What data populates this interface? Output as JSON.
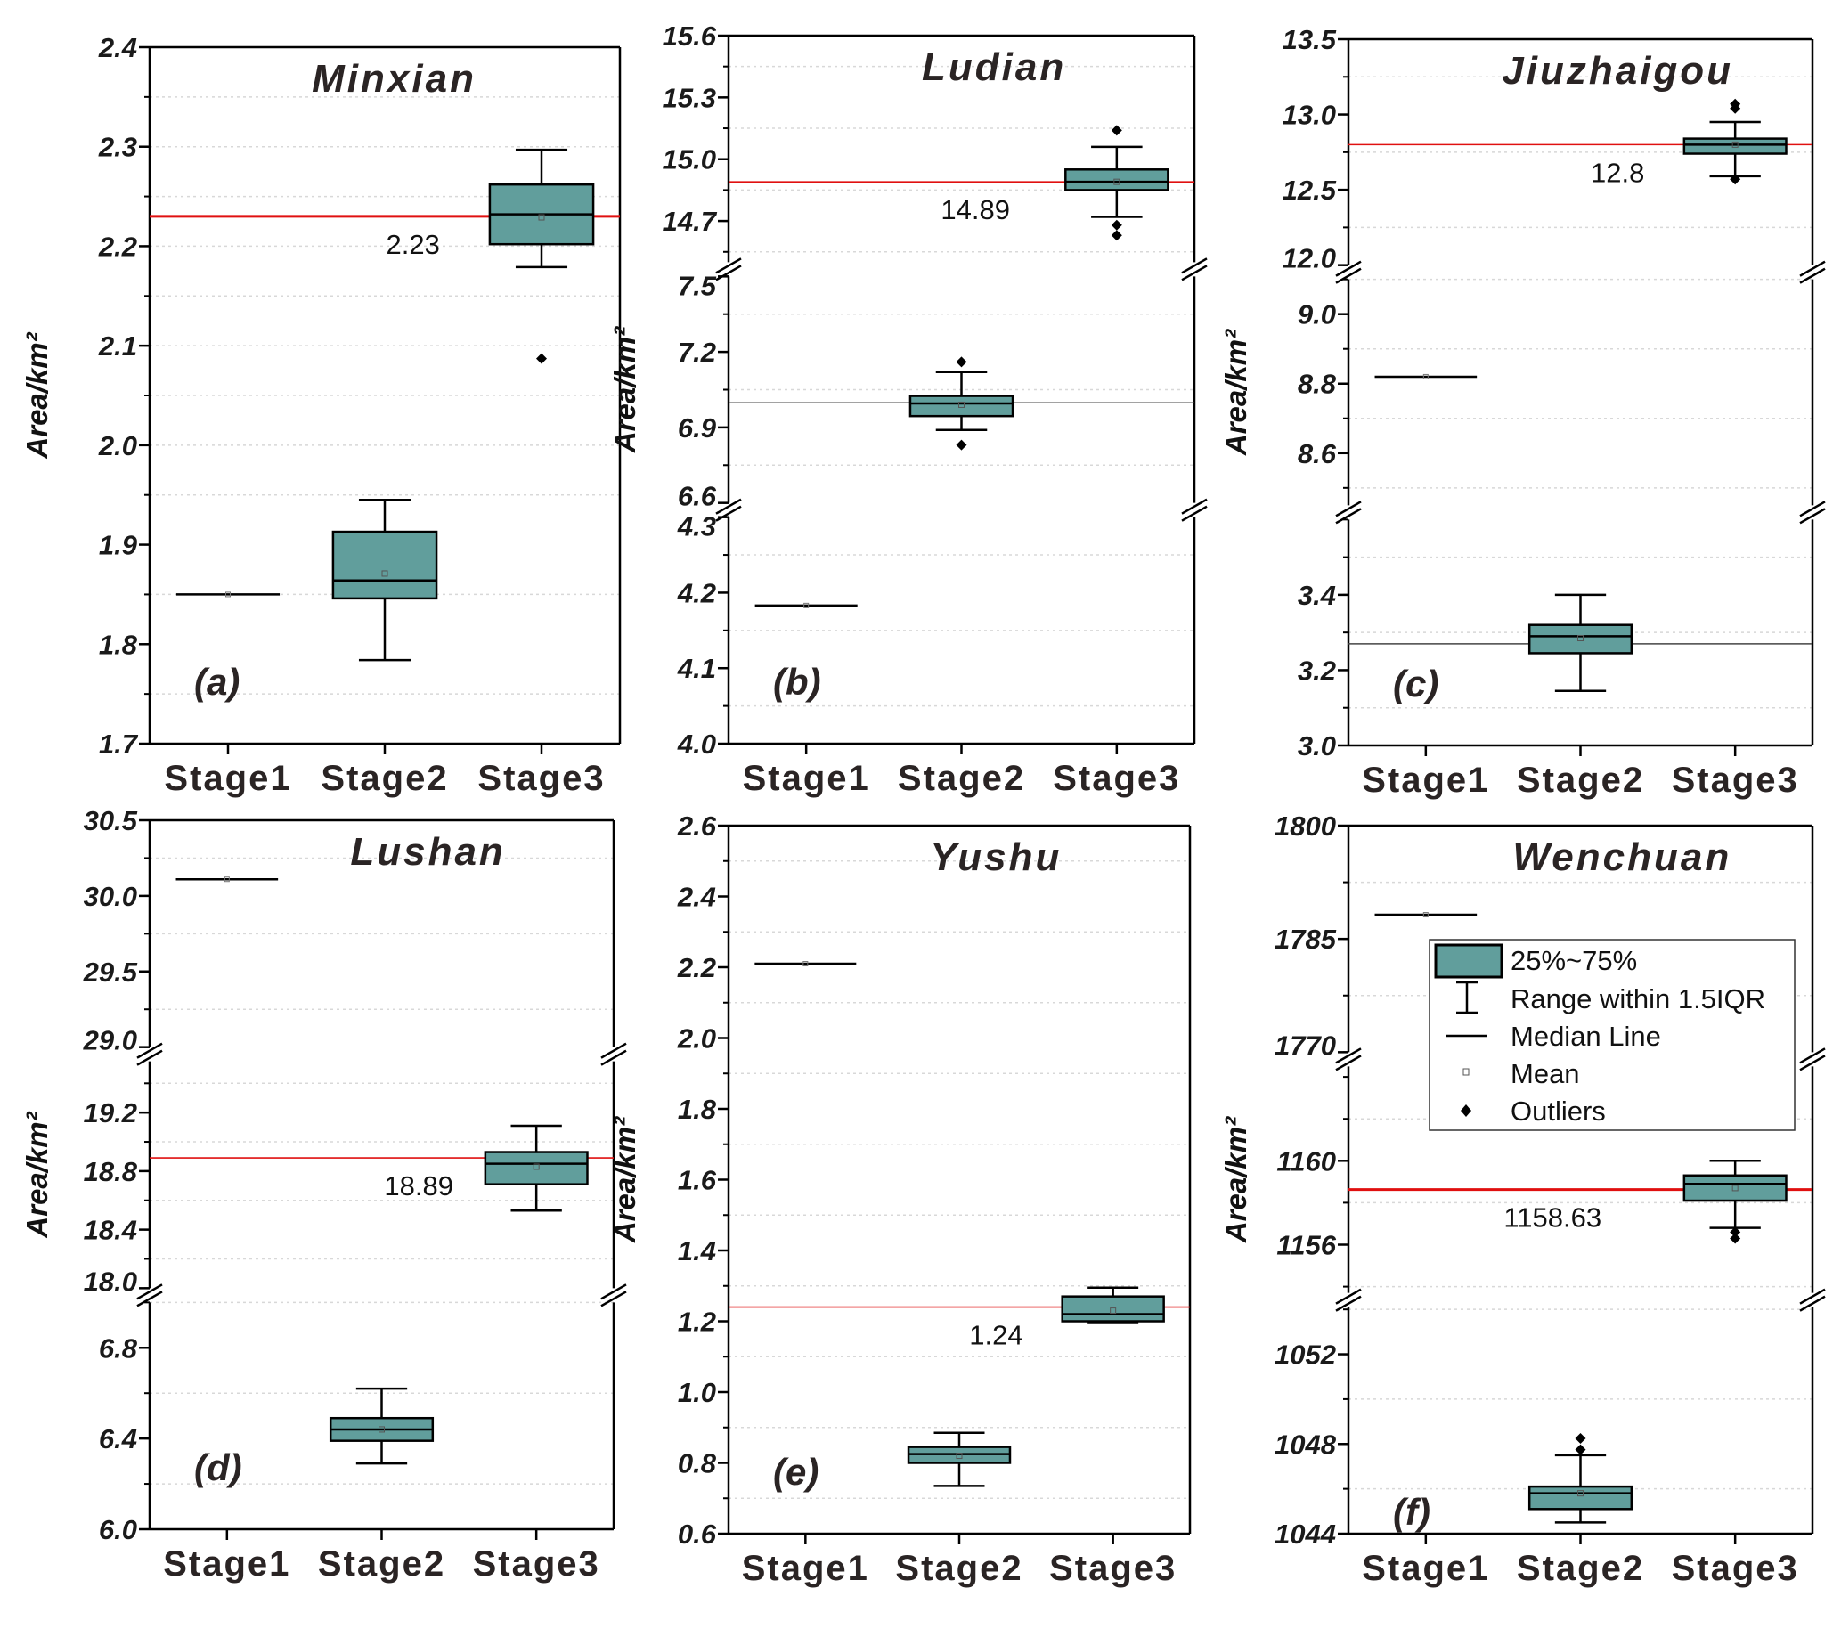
{
  "colors": {
    "box": "#619e9c",
    "reference": "#e01010",
    "guide": "#444444"
  },
  "legend": {
    "items": [
      "25%~75%",
      "Range within 1.5IQR",
      "Median Line",
      "Mean",
      "Outliers"
    ]
  },
  "chart_data": [
    {
      "type": "box",
      "title": "Minxian",
      "panel_label": "(a)",
      "ylabel": "Area/km²",
      "categories": [
        "Stage1",
        "Stage2",
        "Stage3"
      ],
      "segments": [
        {
          "range": [
            1.7,
            2.4
          ],
          "ticks": [
            "1.7",
            "1.8",
            "1.9",
            "2.0",
            "2.1",
            "2.2",
            "2.3",
            "2.4"
          ]
        }
      ],
      "stages": [
        {
          "type": "single",
          "value": 1.85
        },
        {
          "type": "box",
          "q1": 1.846,
          "median": 1.864,
          "q3": 1.913,
          "whisker_low": 1.784,
          "whisker_high": 1.945,
          "mean": 1.871,
          "outliers": []
        },
        {
          "type": "box",
          "q1": 2.202,
          "median": 2.232,
          "q3": 2.262,
          "whisker_low": 2.179,
          "whisker_high": 2.297,
          "mean": 2.229,
          "outliers": [
            2.087
          ]
        }
      ],
      "reference_lines": [
        {
          "value": 2.23,
          "label": "2.23",
          "color": "#e01010"
        }
      ]
    },
    {
      "type": "box",
      "title": "Ludian",
      "panel_label": "(b)",
      "ylabel": "Area/km²",
      "categories": [
        "Stage1",
        "Stage2",
        "Stage3"
      ],
      "segments": [
        {
          "range": [
            4.0,
            4.3
          ],
          "ticks": [
            "4.0",
            "4.1",
            "4.2",
            "4.3"
          ]
        },
        {
          "range": [
            6.6,
            7.5
          ],
          "ticks": [
            "6.6",
            "6.9",
            "7.2",
            "7.5"
          ]
        },
        {
          "range": [
            14.5,
            15.6
          ],
          "ticks": [
            "14.7",
            "15.0",
            "15.3",
            "15.6"
          ]
        }
      ],
      "stages": [
        {
          "type": "single",
          "value": 4.183
        },
        {
          "type": "box",
          "q1": 6.945,
          "median": 6.995,
          "q3": 7.025,
          "whisker_low": 6.89,
          "whisker_high": 7.12,
          "mean": 6.99,
          "outliers": [
            7.16,
            6.83
          ]
        },
        {
          "type": "box",
          "q1": 14.85,
          "median": 14.89,
          "q3": 14.95,
          "whisker_low": 14.72,
          "whisker_high": 15.06,
          "mean": 14.89,
          "outliers": [
            15.14,
            14.68,
            14.63
          ]
        }
      ],
      "reference_lines": [
        {
          "value": 14.89,
          "label": "14.89",
          "color": "#e01010"
        },
        {
          "value": 6.998,
          "color": "#444444"
        }
      ]
    },
    {
      "type": "box",
      "title": "Jiuzhaigou",
      "panel_label": "(c)",
      "ylabel": "Area/km²",
      "categories": [
        "Stage1",
        "Stage2",
        "Stage3"
      ],
      "segments": [
        {
          "range": [
            3.0,
            3.6
          ],
          "ticks": [
            "3.0",
            "3.2",
            "3.4"
          ]
        },
        {
          "range": [
            8.45,
            9.1
          ],
          "ticks": [
            "8.6",
            "8.8",
            "9.0"
          ]
        },
        {
          "range": [
            12.0,
            13.5
          ],
          "ticks": [
            "12.0",
            "12.5",
            "13.0",
            "13.5"
          ]
        }
      ],
      "stages": [
        {
          "type": "single",
          "value": 8.82
        },
        {
          "type": "box",
          "q1": 3.245,
          "median": 3.29,
          "q3": 3.32,
          "whisker_low": 3.145,
          "whisker_high": 3.4,
          "mean": 3.285,
          "outliers": []
        },
        {
          "type": "box",
          "q1": 12.74,
          "median": 12.8,
          "q3": 12.84,
          "whisker_low": 12.59,
          "whisker_high": 12.95,
          "mean": 12.8,
          "outliers": [
            13.07,
            13.04,
            12.57
          ]
        }
      ],
      "reference_lines": [
        {
          "value": 12.8,
          "label": "12.8",
          "color": "#e01010"
        },
        {
          "value": 3.27,
          "color": "#444444"
        }
      ]
    },
    {
      "type": "box",
      "title": "Lushan",
      "panel_label": "(d)",
      "ylabel": "Area/km²",
      "categories": [
        "Stage1",
        "Stage2",
        "Stage3"
      ],
      "segments": [
        {
          "range": [
            6.0,
            7.0
          ],
          "ticks": [
            "6.0",
            "6.4",
            "6.8"
          ]
        },
        {
          "range": [
            18.0,
            19.55
          ],
          "ticks": [
            "18.0",
            "18.4",
            "18.8",
            "19.2"
          ]
        },
        {
          "range": [
            29.0,
            30.5
          ],
          "ticks": [
            "29.0",
            "29.5",
            "30.0",
            "30.5"
          ]
        }
      ],
      "stages": [
        {
          "type": "single",
          "value": 30.11
        },
        {
          "type": "box",
          "q1": 6.39,
          "median": 6.44,
          "q3": 6.49,
          "whisker_low": 6.29,
          "whisker_high": 6.62,
          "mean": 6.44,
          "outliers": []
        },
        {
          "type": "box",
          "q1": 18.71,
          "median": 18.85,
          "q3": 18.93,
          "whisker_low": 18.53,
          "whisker_high": 19.11,
          "mean": 18.83,
          "outliers": []
        }
      ],
      "reference_lines": [
        {
          "value": 18.89,
          "label": "18.89",
          "color": "#e01010"
        }
      ]
    },
    {
      "type": "box",
      "title": "Yushu",
      "panel_label": "(e)",
      "ylabel": "Area/km²",
      "categories": [
        "Stage1",
        "Stage2",
        "Stage3"
      ],
      "segments": [
        {
          "range": [
            0.6,
            2.6
          ],
          "ticks": [
            "0.6",
            "0.8",
            "1.0",
            "1.2",
            "1.4",
            "1.6",
            "1.8",
            "2.0",
            "2.2",
            "2.4",
            "2.6"
          ]
        }
      ],
      "stages": [
        {
          "type": "single",
          "value": 2.21
        },
        {
          "type": "box",
          "q1": 0.8,
          "median": 0.825,
          "q3": 0.845,
          "whisker_low": 0.735,
          "whisker_high": 0.885,
          "mean": 0.82,
          "outliers": []
        },
        {
          "type": "box",
          "q1": 1.2,
          "median": 1.22,
          "q3": 1.27,
          "whisker_low": 1.195,
          "whisker_high": 1.295,
          "mean": 1.23,
          "outliers": []
        }
      ],
      "reference_lines": [
        {
          "value": 1.24,
          "label": "1.24",
          "color": "#e01010"
        }
      ]
    },
    {
      "type": "box",
      "title": "Wenchuan",
      "panel_label": "(f)",
      "ylabel": "Area/km²",
      "categories": [
        "Stage1",
        "Stage2",
        "Stage3"
      ],
      "segments": [
        {
          "range": [
            1044,
            1054.1
          ],
          "ticks": [
            "1044",
            "1048",
            "1052"
          ]
        },
        {
          "range": [
            1153.7,
            1164.5
          ],
          "ticks": [
            "1156",
            "1160"
          ]
        },
        {
          "range": [
            1770,
            1800
          ],
          "ticks": [
            "1770",
            "1785",
            "1800"
          ]
        }
      ],
      "stages": [
        {
          "type": "single",
          "value": 1788.2
        },
        {
          "type": "box",
          "q1": 1045.1,
          "median": 1045.8,
          "q3": 1046.1,
          "whisker_low": 1044.5,
          "whisker_high": 1047.5,
          "mean": 1045.8,
          "outliers": [
            1048.25,
            1047.75
          ]
        },
        {
          "type": "box",
          "q1": 1158.1,
          "median": 1158.9,
          "q3": 1159.3,
          "whisker_low": 1156.8,
          "whisker_high": 1160,
          "mean": 1158.7,
          "outliers": [
            1156.6,
            1156.3
          ]
        }
      ],
      "reference_lines": [
        {
          "value": 1158.63,
          "label": "1158.63",
          "color": "#e01010"
        }
      ],
      "legend": "top-right"
    }
  ]
}
